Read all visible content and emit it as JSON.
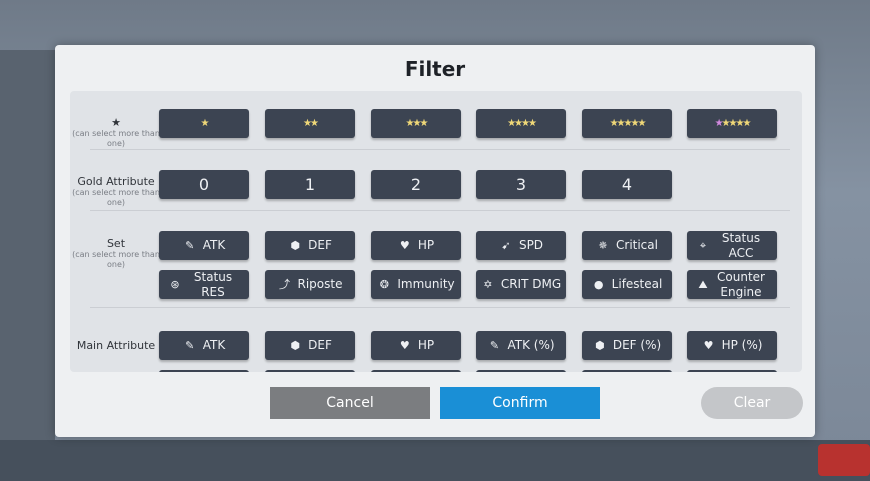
{
  "title": "Filter",
  "rows": {
    "stars": {
      "label": "★",
      "note": "(can select more than one)",
      "options": [
        {
          "count": 1
        },
        {
          "count": 2
        },
        {
          "count": 3
        },
        {
          "count": 4
        },
        {
          "count": 5
        },
        {
          "count": 5,
          "awakened": true
        }
      ]
    },
    "gold": {
      "label": "Gold Attribute",
      "note": "(can select more than one)",
      "options": [
        "0",
        "1",
        "2",
        "3",
        "4"
      ]
    },
    "set": {
      "label": "Set",
      "note": "(can select more than one)",
      "options": [
        {
          "label": "ATK",
          "icon": "sword-icon"
        },
        {
          "label": "DEF",
          "icon": "shield-icon"
        },
        {
          "label": "HP",
          "icon": "heart-icon"
        },
        {
          "label": "SPD",
          "icon": "boot-icon"
        },
        {
          "label": "Critical",
          "icon": "crit-icon"
        },
        {
          "label": "Status ACC",
          "icon": "target-icon"
        },
        {
          "label": "Status RES",
          "icon": "resist-icon"
        },
        {
          "label": "Riposte",
          "icon": "riposte-icon"
        },
        {
          "label": "Immunity",
          "icon": "immunity-icon"
        },
        {
          "label": "CRIT DMG",
          "icon": "gear-icon"
        },
        {
          "label": "Lifesteal",
          "icon": "drop-icon"
        },
        {
          "label": "Counter Engine",
          "icon": "counter-icon"
        }
      ]
    },
    "main": {
      "label": "Main Attribute",
      "options": [
        {
          "label": "ATK",
          "icon": "sword-icon"
        },
        {
          "label": "DEF",
          "icon": "shield-icon"
        },
        {
          "label": "HP",
          "icon": "heart-icon"
        },
        {
          "label": "ATK (%)",
          "icon": "sword-icon"
        },
        {
          "label": "DEF (%)",
          "icon": "shield-icon"
        },
        {
          "label": "HP (%)",
          "icon": "heart-icon"
        }
      ]
    }
  },
  "buttons": {
    "cancel": "Cancel",
    "confirm": "Confirm",
    "clear": "Clear"
  },
  "colors": {
    "button": "#3c4452",
    "confirm": "#1a8fd6",
    "cancel": "#7b7d80",
    "clear": "#c4c6c9",
    "star": "#f0d878",
    "awakened_star": "#d28ae0"
  }
}
